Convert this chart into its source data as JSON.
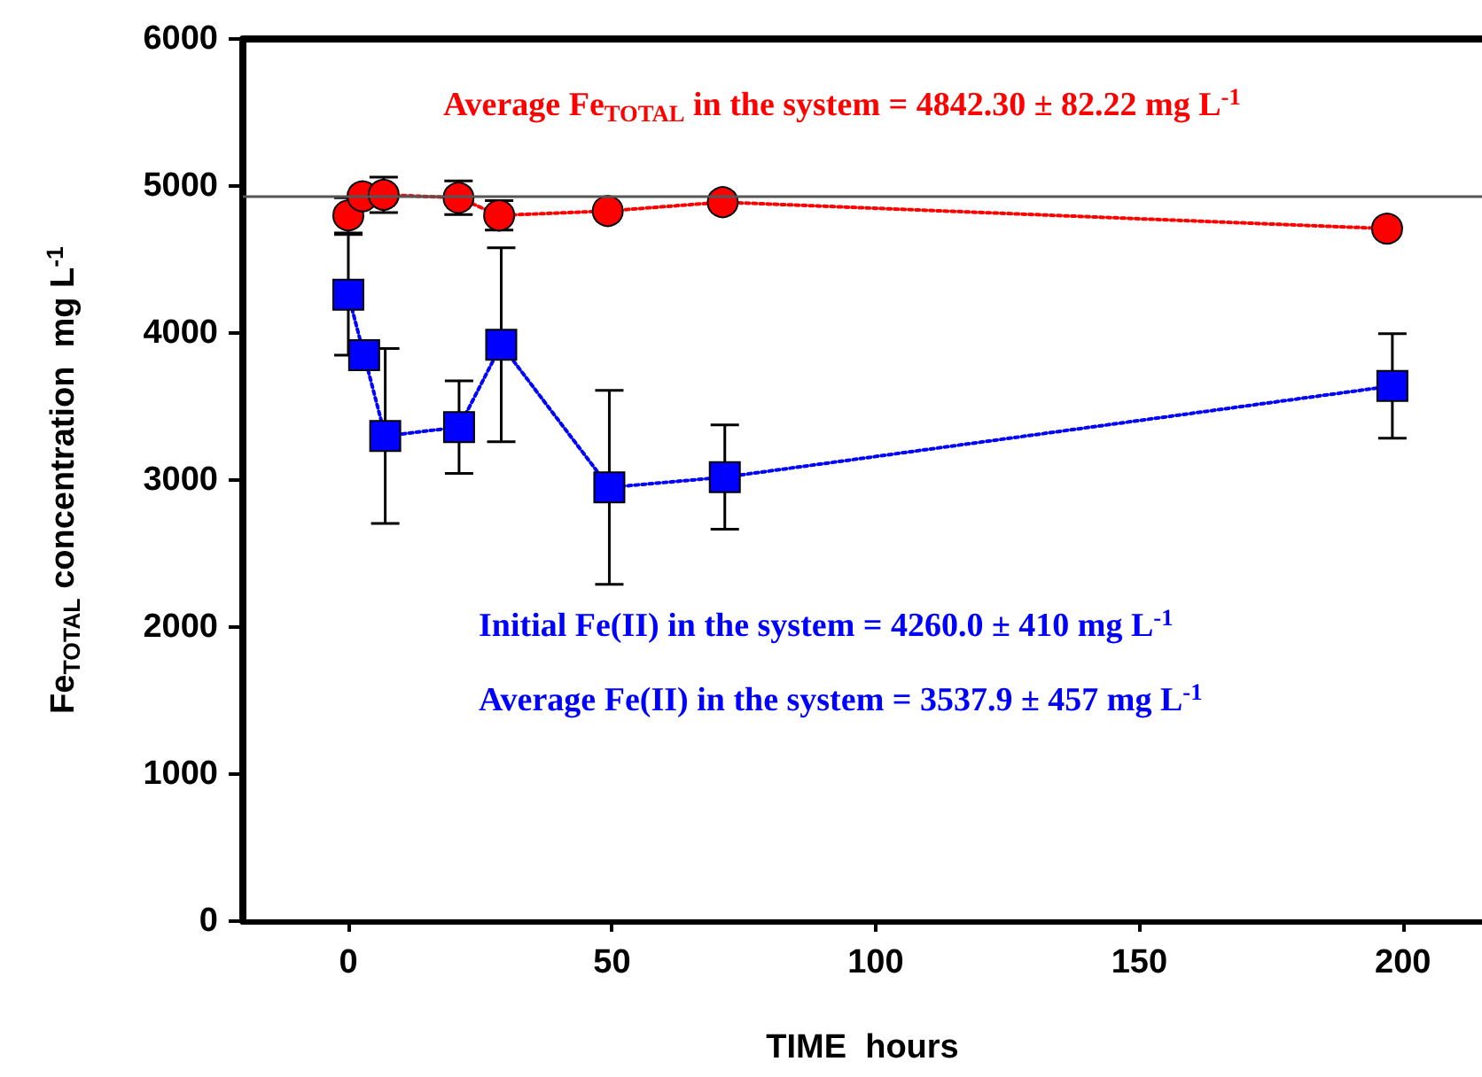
{
  "chart_data": {
    "type": "line",
    "xlabel": "TIME  hours",
    "ylabel": "Fe$_{TOTAL}$ concentration  mg L$^{-1}$",
    "xlim": [
      -20,
      215
    ],
    "xticks": [
      0,
      50,
      100,
      150,
      200
    ],
    "ylim": [
      0,
      6000
    ],
    "yticks": [
      0,
      1000,
      2000,
      3000,
      4000,
      5000,
      6000
    ],
    "series": [
      {
        "color": "#ff0000",
        "marker": "circle",
        "line_style": "dotted",
        "x": [
          0,
          2.7,
          6.7,
          20.9,
          28.6,
          49.2,
          71,
          197
        ],
        "values": [
          4800,
          4930,
          4940,
          4920,
          4800,
          4830,
          4890,
          4710
        ],
        "errors": [
          120,
          null,
          120,
          115,
          100,
          null,
          null,
          null
        ]
      },
      {
        "color": "#0000ff",
        "marker": "square",
        "line_style": "dotted",
        "x": [
          0,
          3,
          7,
          21,
          29,
          49.5,
          71.4,
          198
        ],
        "values": [
          4260,
          3850,
          3300,
          3360,
          3920,
          2950,
          3020,
          3640
        ],
        "errors": [
          410,
          null,
          595,
          315,
          660,
          660,
          355,
          355
        ]
      }
    ],
    "ref_lines": [
      {
        "axis": "y",
        "value": 4925,
        "color": "#555555"
      }
    ],
    "annotations": [
      "Average Fe$_{TOTAL}$ in the system = 4842.30 ± 82.22 mg L$^{-1}$",
      "Initial Fe(II) in the system = 4260.0 ± 410 mg L$^{-1}$",
      "Average Fe(II) in the system = 3537.9 ± 457 mg L$^{-1}$"
    ],
    "grid": false
  }
}
